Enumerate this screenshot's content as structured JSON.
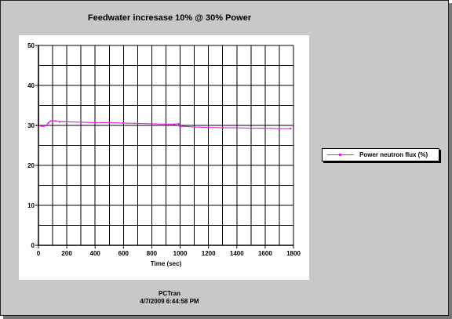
{
  "chart_data": {
    "type": "line",
    "title": "Feedwater incresase 10% @ 30% Power",
    "xlabel": "Time (sec)",
    "ylabel": "",
    "xlim": [
      0,
      1800
    ],
    "ylim": [
      0,
      50
    ],
    "xticks": [
      0,
      200,
      400,
      600,
      800,
      1000,
      1200,
      1400,
      1600,
      1800
    ],
    "yticks": [
      0,
      10,
      20,
      30,
      40,
      50
    ],
    "grid": true,
    "legend_position": "right",
    "series": [
      {
        "name": "Power neutron flux (%)",
        "color": "#d62ad6",
        "points": [
          [
            0,
            30.0
          ],
          [
            1,
            50.0
          ],
          [
            2,
            30.0
          ],
          [
            20,
            29.8
          ],
          [
            40,
            29.8
          ],
          [
            55,
            30.0
          ],
          [
            70,
            30.6
          ],
          [
            85,
            31.1
          ],
          [
            100,
            31.2
          ],
          [
            120,
            31.1
          ],
          [
            150,
            30.9
          ],
          [
            200,
            30.9
          ],
          [
            300,
            30.8
          ],
          [
            400,
            30.7
          ],
          [
            500,
            30.7
          ],
          [
            600,
            30.6
          ],
          [
            700,
            30.5
          ],
          [
            800,
            30.4
          ],
          [
            900,
            30.3
          ],
          [
            960,
            30.3
          ],
          [
            990,
            30.4
          ],
          [
            1000,
            29.5
          ],
          [
            1010,
            29.8
          ],
          [
            1100,
            29.6
          ],
          [
            1200,
            29.5
          ],
          [
            1300,
            29.4
          ],
          [
            1400,
            29.4
          ],
          [
            1500,
            29.3
          ],
          [
            1600,
            29.3
          ],
          [
            1700,
            29.2
          ],
          [
            1780,
            29.2
          ]
        ]
      }
    ]
  },
  "footer": {
    "line1": "PCTran",
    "line2": "4/7/2009 6:44:58 PM"
  }
}
